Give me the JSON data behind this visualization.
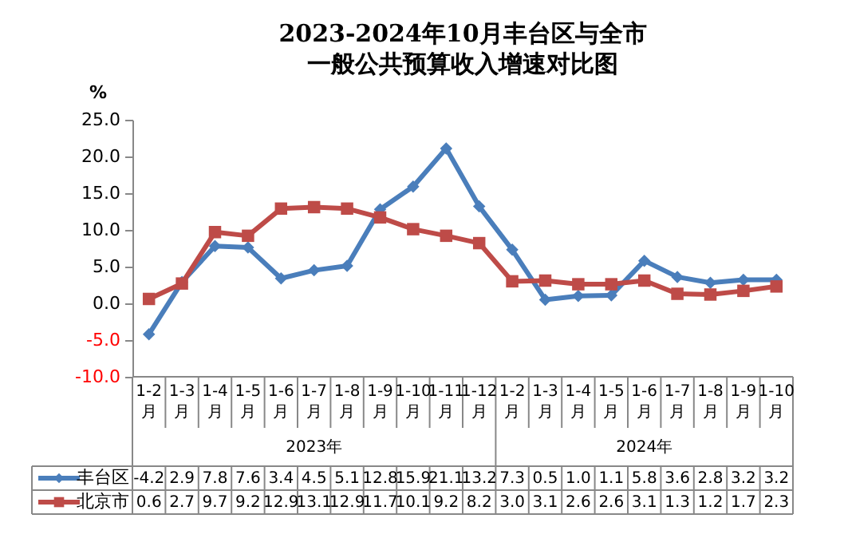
{
  "chart_data": {
    "type": "line",
    "title": "2023-2024年10月丰台区与全市一般公共预算收入增速对比图",
    "ylabel": "%",
    "categories": [
      "1-2月",
      "1-3月",
      "1-4月",
      "1-5月",
      "1-6月",
      "1-7月",
      "1-8月",
      "1-9月",
      "1-10月",
      "1-11月",
      "1-12月",
      "1-2月",
      "1-3月",
      "1-4月",
      "1-5月",
      "1-6月",
      "1-7月",
      "1-8月",
      "1-9月",
      "1-10月"
    ],
    "series": [
      {
        "name": "丰台区",
        "color": "#4a7ebb",
        "marker": "diamond",
        "values": [
          -4.2,
          2.9,
          7.8,
          7.6,
          3.4,
          4.5,
          5.1,
          12.8,
          15.9,
          21.1,
          13.2,
          7.3,
          0.5,
          1.0,
          1.1,
          5.8,
          3.6,
          2.8,
          3.2,
          3.2
        ],
        "value_labels": [
          "-4.2",
          "2.9",
          "7.8",
          "7.6",
          "3.4",
          "4.5",
          "5.1",
          "12.8",
          "15.9",
          "21.1",
          "13.2",
          "7.3",
          "0.5",
          "1.0",
          "1.1",
          "5.8",
          "3.6",
          "2.8",
          "3.2",
          "3.2"
        ]
      },
      {
        "name": "北京市",
        "color": "#be4b48",
        "marker": "square",
        "values": [
          0.6,
          2.7,
          9.7,
          9.2,
          12.9,
          13.1,
          12.9,
          11.7,
          10.1,
          9.2,
          8.2,
          3.0,
          3.1,
          2.6,
          2.6,
          3.1,
          1.3,
          1.2,
          1.7,
          2.3
        ],
        "value_labels": [
          "0.6",
          "2.7",
          "9.7",
          "9.2",
          "12.9",
          "13.1",
          "12.9",
          "11.7",
          "10.1",
          "9.2",
          "8.2",
          "3.0",
          "3.1",
          "2.6",
          "2.6",
          "3.1",
          "1.3",
          "1.2",
          "1.7",
          "2.3"
        ]
      }
    ],
    "annotations": [
      "2023年",
      "2024年"
    ],
    "ylim": [
      -10,
      25
    ],
    "yticks": [
      {
        "value": -10,
        "label": "-10.0"
      },
      {
        "value": -5,
        "label": "-5.0"
      },
      {
        "value": 0,
        "label": "0.0"
      },
      {
        "value": 5,
        "label": "5.0"
      },
      {
        "value": 10,
        "label": "10.0"
      },
      {
        "value": 15,
        "label": "15.0"
      },
      {
        "value": 20,
        "label": "20.0"
      },
      {
        "value": 25,
        "label": "25.0"
      }
    ],
    "grid": false,
    "legend": "bottom",
    "line_style": "solid"
  }
}
